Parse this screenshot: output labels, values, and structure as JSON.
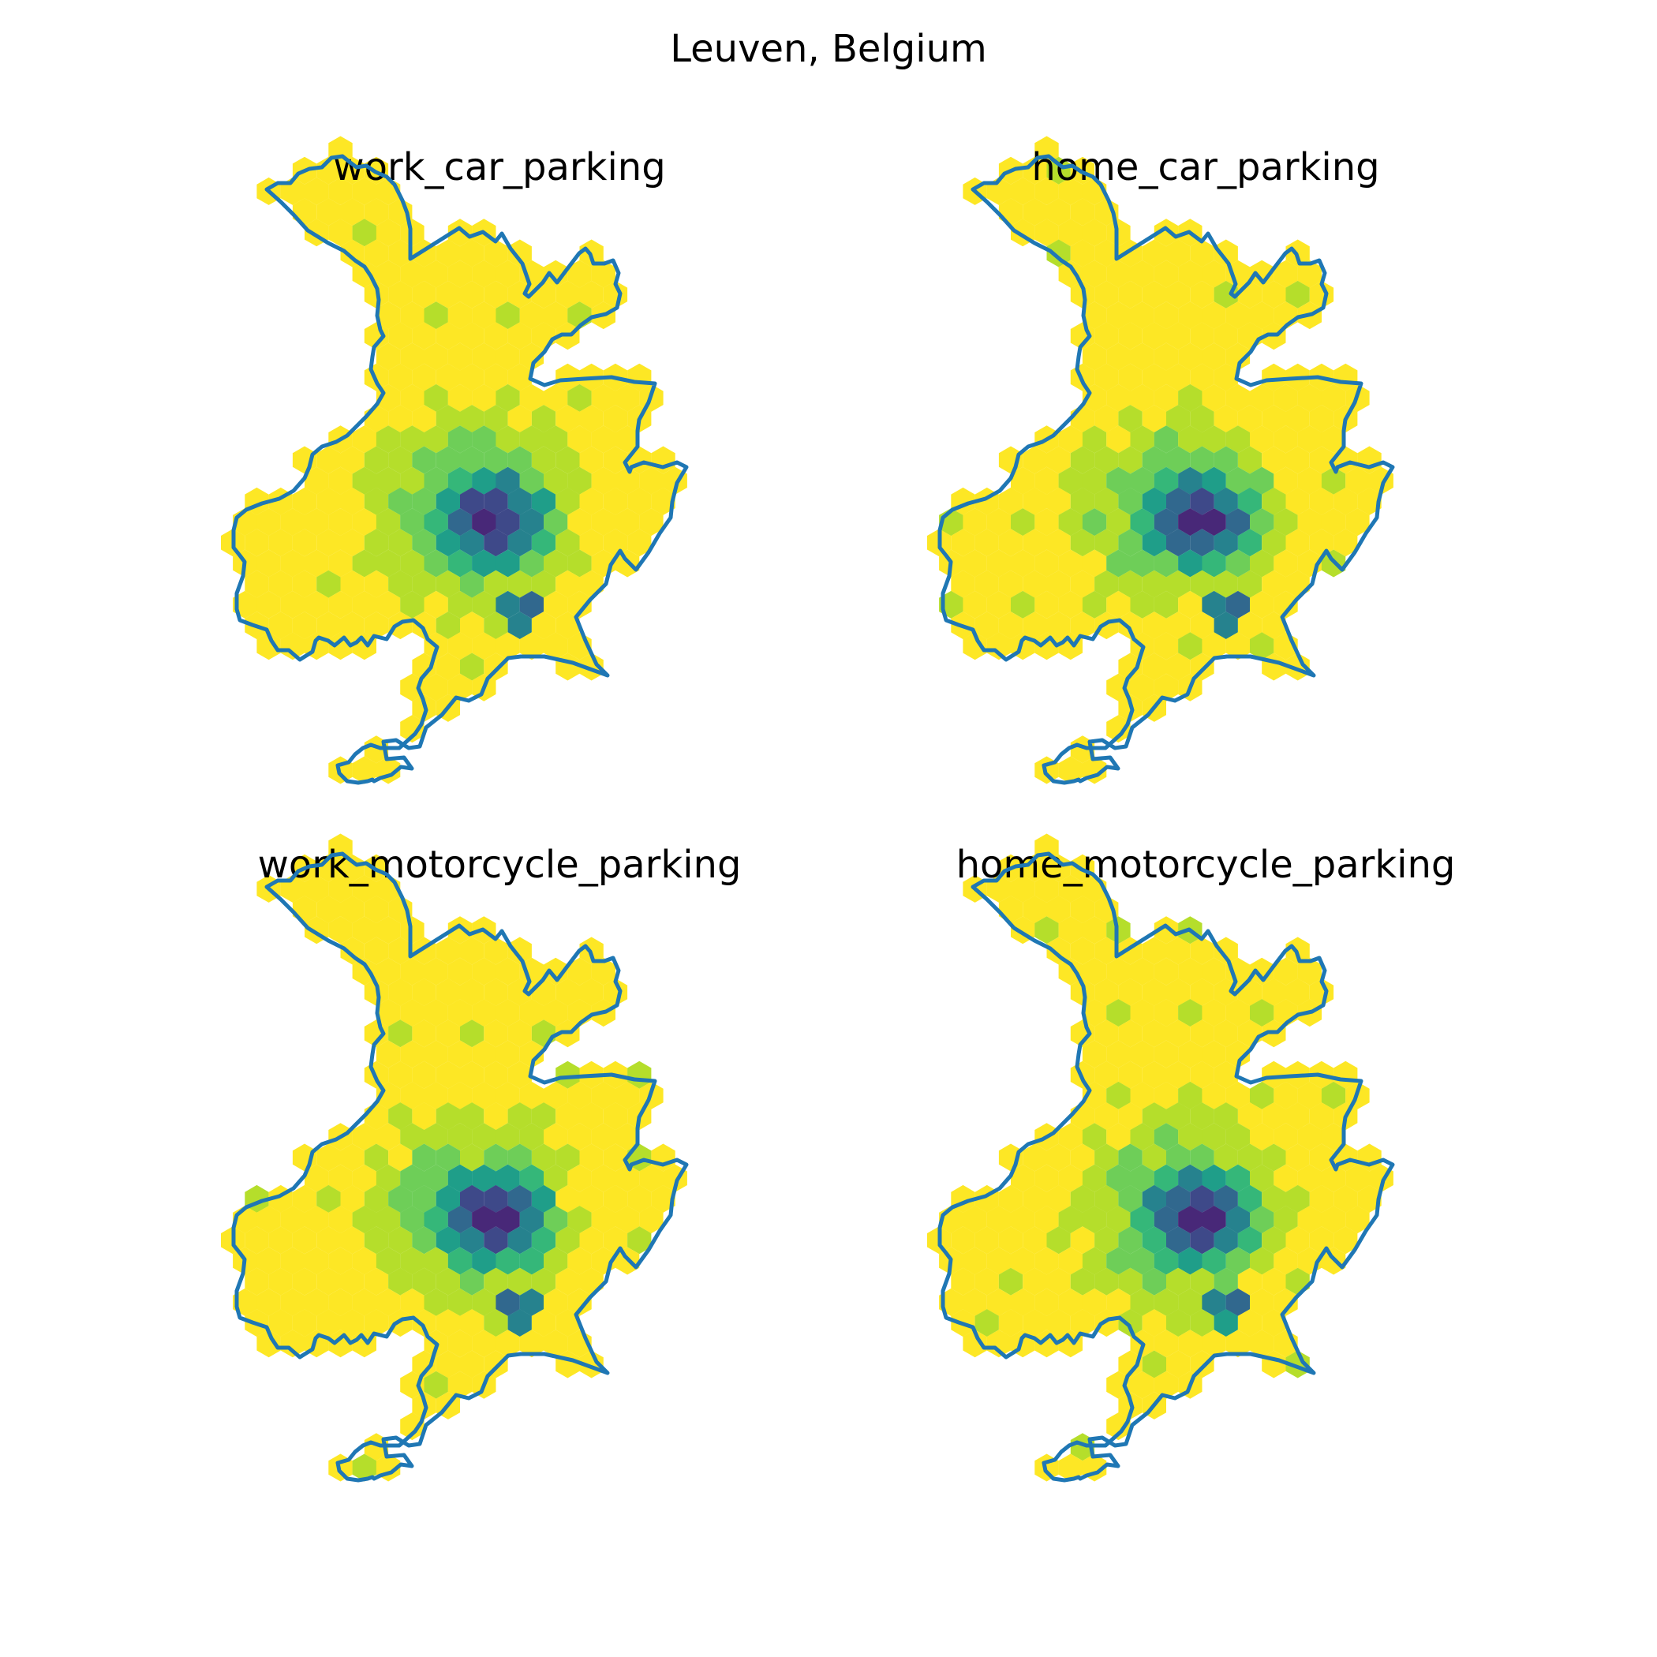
{
  "figure": {
    "title": "Leuven, Belgium"
  },
  "colors": {
    "boundary": "#1f77b4",
    "background": "#ffffff",
    "viridis": [
      "#440154",
      "#482878",
      "#3e4989",
      "#31688e",
      "#26828e",
      "#1f9e89",
      "#35b779",
      "#6ece58",
      "#b5de2b",
      "#fde725"
    ]
  },
  "chart_data": [
    {
      "type": "heatmap",
      "subtitle": "work_car_parking",
      "variant": 0
    },
    {
      "type": "heatmap",
      "subtitle": "home_car_parking",
      "variant": 1
    },
    {
      "type": "heatmap",
      "subtitle": "work_motorcycle_parking",
      "variant": 2
    },
    {
      "type": "heatmap",
      "subtitle": "home_motorcycle_parking",
      "variant": 3
    }
  ]
}
